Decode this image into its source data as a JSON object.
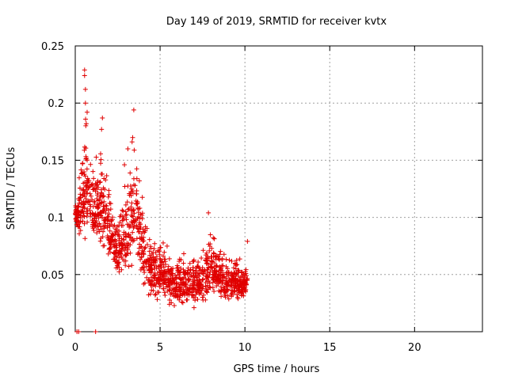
{
  "chart_data": {
    "type": "scatter",
    "title": "Day 149 of 2019, SRMTID for receiver kvtx",
    "xlabel": "GPS time / hours",
    "ylabel": "SRMTID / TECUs",
    "xlim": [
      0,
      24
    ],
    "ylim": [
      0,
      0.25
    ],
    "x_ticks": [
      0,
      5,
      10,
      15,
      20
    ],
    "x_tick_labels": [
      "0",
      "5",
      "10",
      "15",
      "20"
    ],
    "y_ticks": [
      0,
      0.05,
      0.1,
      0.15,
      0.2,
      0.25
    ],
    "y_tick_labels": [
      "0",
      "0.05",
      "0.1",
      "0.15",
      "0.2",
      "0.25"
    ],
    "grid": true,
    "marker": "+",
    "series": [
      {
        "name": "SRMTID",
        "color": "#e00000",
        "envelope": [
          {
            "x": 0.0,
            "min": 0.095,
            "max": 0.115
          },
          {
            "x": 0.3,
            "min": 0.075,
            "max": 0.15
          },
          {
            "x": 0.6,
            "min": 0.07,
            "max": 0.23
          },
          {
            "x": 1.0,
            "min": 0.07,
            "max": 0.165
          },
          {
            "x": 1.5,
            "min": 0.065,
            "max": 0.185
          },
          {
            "x": 2.0,
            "min": 0.055,
            "max": 0.14
          },
          {
            "x": 2.5,
            "min": 0.04,
            "max": 0.12
          },
          {
            "x": 3.0,
            "min": 0.035,
            "max": 0.165
          },
          {
            "x": 3.5,
            "min": 0.05,
            "max": 0.195
          },
          {
            "x": 4.0,
            "min": 0.03,
            "max": 0.14
          },
          {
            "x": 4.5,
            "min": 0.025,
            "max": 0.09
          },
          {
            "x": 5.0,
            "min": 0.025,
            "max": 0.1
          },
          {
            "x": 5.5,
            "min": 0.02,
            "max": 0.085
          },
          {
            "x": 6.0,
            "min": 0.02,
            "max": 0.08
          },
          {
            "x": 6.5,
            "min": 0.02,
            "max": 0.075
          },
          {
            "x": 7.0,
            "min": 0.02,
            "max": 0.08
          },
          {
            "x": 7.5,
            "min": 0.02,
            "max": 0.08
          },
          {
            "x": 8.0,
            "min": 0.025,
            "max": 0.105
          },
          {
            "x": 8.5,
            "min": 0.025,
            "max": 0.085
          },
          {
            "x": 9.0,
            "min": 0.025,
            "max": 0.075
          },
          {
            "x": 9.5,
            "min": 0.025,
            "max": 0.075
          },
          {
            "x": 10.0,
            "min": 0.025,
            "max": 0.065
          },
          {
            "x": 10.15,
            "min": 0.03,
            "max": 0.08
          }
        ],
        "highlight_points": [
          {
            "x": 0.55,
            "y": 0.229
          },
          {
            "x": 0.55,
            "y": 0.224
          },
          {
            "x": 0.6,
            "y": 0.212
          },
          {
            "x": 0.6,
            "y": 0.2
          },
          {
            "x": 0.7,
            "y": 0.192
          },
          {
            "x": 0.65,
            "y": 0.182
          },
          {
            "x": 1.6,
            "y": 0.187
          },
          {
            "x": 1.55,
            "y": 0.177
          },
          {
            "x": 3.45,
            "y": 0.194
          },
          {
            "x": 3.35,
            "y": 0.166
          },
          {
            "x": 3.1,
            "y": 0.16
          },
          {
            "x": 2.9,
            "y": 0.146
          },
          {
            "x": 7.85,
            "y": 0.104
          },
          {
            "x": 10.15,
            "y": 0.079
          },
          {
            "x": 7.0,
            "y": 0.021
          },
          {
            "x": 5.55,
            "y": 0.024
          }
        ],
        "zero_points": [
          {
            "x": 0.1,
            "y": 0
          },
          {
            "x": 0.2,
            "y": 0
          },
          {
            "x": 1.2,
            "y": 0
          }
        ]
      }
    ]
  }
}
